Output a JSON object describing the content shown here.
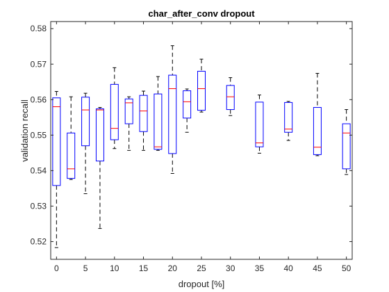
{
  "chart_data": {
    "type": "box",
    "title": "char_after_conv dropout",
    "xlabel": "dropout [%]",
    "ylabel": "validation recall",
    "xlim": [
      -1,
      51
    ],
    "ylim": [
      0.515,
      0.582
    ],
    "xticks": [
      0,
      5,
      10,
      15,
      20,
      25,
      30,
      35,
      40,
      45,
      50
    ],
    "yticks": [
      0.52,
      0.53,
      0.54,
      0.55,
      0.56,
      0.57,
      0.58
    ],
    "box_color": "#0000ff",
    "median_color": "#ff0000",
    "whisker_color": "#000000",
    "boxes": [
      {
        "x": 0.0,
        "low": 0.5183,
        "q1": 0.5358,
        "median": 0.558,
        "q3": 0.5605,
        "high": 0.5623
      },
      {
        "x": 2.5,
        "low": 0.5375,
        "q1": 0.5378,
        "median": 0.5405,
        "q3": 0.5506,
        "high": 0.5608
      },
      {
        "x": 5.0,
        "low": 0.5335,
        "q1": 0.547,
        "median": 0.5571,
        "q3": 0.5607,
        "high": 0.5618
      },
      {
        "x": 7.5,
        "low": 0.5237,
        "q1": 0.5427,
        "median": 0.5571,
        "q3": 0.5574,
        "high": 0.5578
      },
      {
        "x": 10.0,
        "low": 0.5462,
        "q1": 0.5487,
        "median": 0.5519,
        "q3": 0.5643,
        "high": 0.569
      },
      {
        "x": 12.5,
        "low": 0.5457,
        "q1": 0.5532,
        "median": 0.5591,
        "q3": 0.5602,
        "high": 0.5608
      },
      {
        "x": 15.0,
        "low": 0.5457,
        "q1": 0.551,
        "median": 0.5568,
        "q3": 0.5612,
        "high": 0.5624
      },
      {
        "x": 17.5,
        "low": 0.5457,
        "q1": 0.546,
        "median": 0.5467,
        "q3": 0.5616,
        "high": 0.5665
      },
      {
        "x": 20.0,
        "low": 0.5392,
        "q1": 0.5448,
        "median": 0.5631,
        "q3": 0.5669,
        "high": 0.5752
      },
      {
        "x": 22.5,
        "low": 0.5508,
        "q1": 0.5548,
        "median": 0.5594,
        "q3": 0.5625,
        "high": 0.563
      },
      {
        "x": 25.0,
        "low": 0.5565,
        "q1": 0.557,
        "median": 0.5631,
        "q3": 0.568,
        "high": 0.5714
      },
      {
        "x": 30.0,
        "low": 0.5555,
        "q1": 0.5572,
        "median": 0.5608,
        "q3": 0.564,
        "high": 0.5662
      },
      {
        "x": 35.0,
        "low": 0.5449,
        "q1": 0.5467,
        "median": 0.5478,
        "q3": 0.5593,
        "high": 0.5613
      },
      {
        "x": 40.0,
        "low": 0.5485,
        "q1": 0.5508,
        "median": 0.5517,
        "q3": 0.5592,
        "high": 0.5595
      },
      {
        "x": 45.0,
        "low": 0.5442,
        "q1": 0.5445,
        "median": 0.5466,
        "q3": 0.5578,
        "high": 0.5674
      },
      {
        "x": 50.0,
        "low": 0.5389,
        "q1": 0.5405,
        "median": 0.5506,
        "q3": 0.5532,
        "high": 0.5572
      }
    ]
  }
}
